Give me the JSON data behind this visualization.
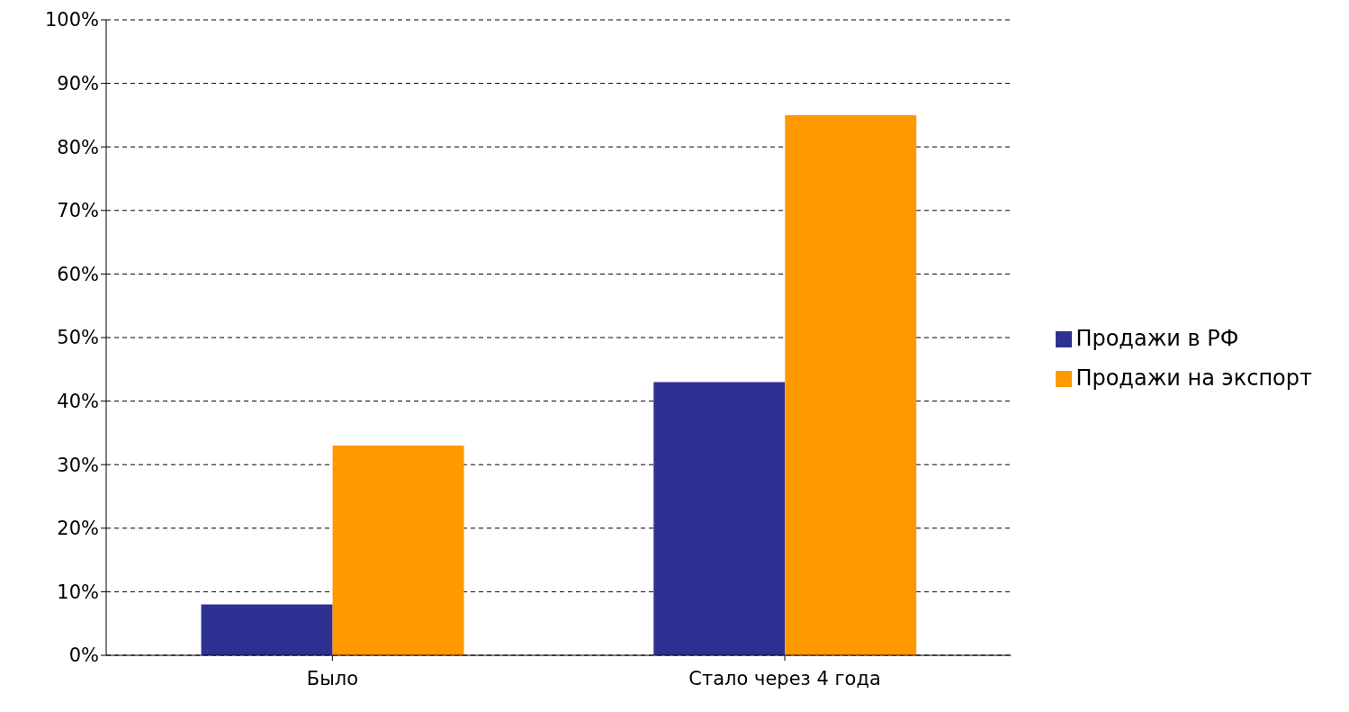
{
  "chart_data": {
    "type": "bar",
    "categories": [
      "Было",
      "Стало через 4 года"
    ],
    "series": [
      {
        "name": "Продажи в РФ",
        "color": "#2e3192",
        "values": [
          8,
          43
        ]
      },
      {
        "name": "Продажи на экспорт",
        "color": "#ff9900",
        "values": [
          33,
          85
        ]
      }
    ],
    "ylim": [
      0,
      100
    ],
    "yticks": [
      {
        "value": 0,
        "label": "0%"
      },
      {
        "value": 10,
        "label": "10%"
      },
      {
        "value": 20,
        "label": "20%"
      },
      {
        "value": 30,
        "label": "30%"
      },
      {
        "value": 40,
        "label": "40%"
      },
      {
        "value": 50,
        "label": "50%"
      },
      {
        "value": 60,
        "label": "60%"
      },
      {
        "value": 70,
        "label": "70%"
      },
      {
        "value": 80,
        "label": "80%"
      },
      {
        "value": 90,
        "label": "90%"
      },
      {
        "value": 100,
        "label": "100%"
      }
    ],
    "grid": "y",
    "legend": "right"
  }
}
